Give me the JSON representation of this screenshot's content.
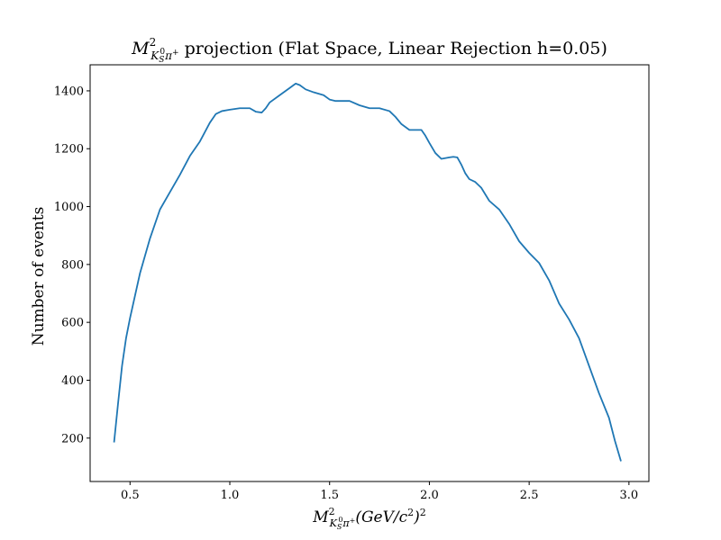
{
  "chart_data": {
    "type": "line",
    "title": {
      "math_base": "M",
      "math_sup": "2",
      "math_sub_main": "K",
      "math_sub_s": "S",
      "math_sub_zero": "0",
      "math_sub_pi": "π",
      "math_sub_plus": "+",
      "text": " projection (Flat Space, Linear Rejection h=0.05)"
    },
    "xlabel": {
      "math_base": "M",
      "math_sup": "2",
      "math_sub_main": "K",
      "math_sub_s": "S",
      "math_sub_zero": "0",
      "math_sub_pi": "π",
      "math_sub_plus": "+",
      "unit": "(GeV/c",
      "unit_sup": "2",
      "unit_close": ")",
      "unit_close_sup": "2"
    },
    "ylabel": "Number of events",
    "xlim": [
      0.3,
      3.1
    ],
    "ylim": [
      50,
      1490
    ],
    "xticks": [
      0.5,
      1.0,
      1.5,
      2.0,
      2.5,
      3.0
    ],
    "xtick_labels": [
      "0.5",
      "1.0",
      "1.5",
      "2.0",
      "2.5",
      "3.0"
    ],
    "yticks": [
      200,
      400,
      600,
      800,
      1000,
      1200,
      1400
    ],
    "ytick_labels": [
      "200",
      "400",
      "600",
      "800",
      "1000",
      "1200",
      "1400"
    ],
    "grid": false,
    "series": [
      {
        "color": "#1f77b4",
        "x": [
          0.42,
          0.44,
          0.46,
          0.48,
          0.5,
          0.55,
          0.6,
          0.65,
          0.7,
          0.75,
          0.8,
          0.85,
          0.9,
          0.93,
          0.96,
          1.0,
          1.05,
          1.1,
          1.13,
          1.16,
          1.18,
          1.2,
          1.25,
          1.3,
          1.33,
          1.35,
          1.38,
          1.42,
          1.47,
          1.5,
          1.53,
          1.57,
          1.6,
          1.65,
          1.7,
          1.75,
          1.8,
          1.83,
          1.86,
          1.9,
          1.93,
          1.96,
          1.98,
          2.0,
          2.03,
          2.06,
          2.1,
          2.12,
          2.14,
          2.16,
          2.18,
          2.2,
          2.23,
          2.26,
          2.3,
          2.35,
          2.4,
          2.45,
          2.5,
          2.55,
          2.6,
          2.65,
          2.7,
          2.75,
          2.8,
          2.85,
          2.9,
          2.93,
          2.96
        ],
        "y": [
          185,
          320,
          450,
          545,
          615,
          770,
          890,
          990,
          1050,
          1110,
          1175,
          1225,
          1290,
          1320,
          1330,
          1335,
          1340,
          1340,
          1328,
          1325,
          1340,
          1360,
          1385,
          1410,
          1425,
          1420,
          1405,
          1395,
          1385,
          1370,
          1365,
          1365,
          1365,
          1350,
          1340,
          1340,
          1330,
          1310,
          1285,
          1265,
          1265,
          1265,
          1245,
          1220,
          1185,
          1165,
          1170,
          1172,
          1170,
          1145,
          1115,
          1095,
          1085,
          1065,
          1020,
          990,
          940,
          880,
          840,
          805,
          745,
          665,
          610,
          545,
          450,
          355,
          270,
          190,
          120
        ]
      }
    ]
  }
}
